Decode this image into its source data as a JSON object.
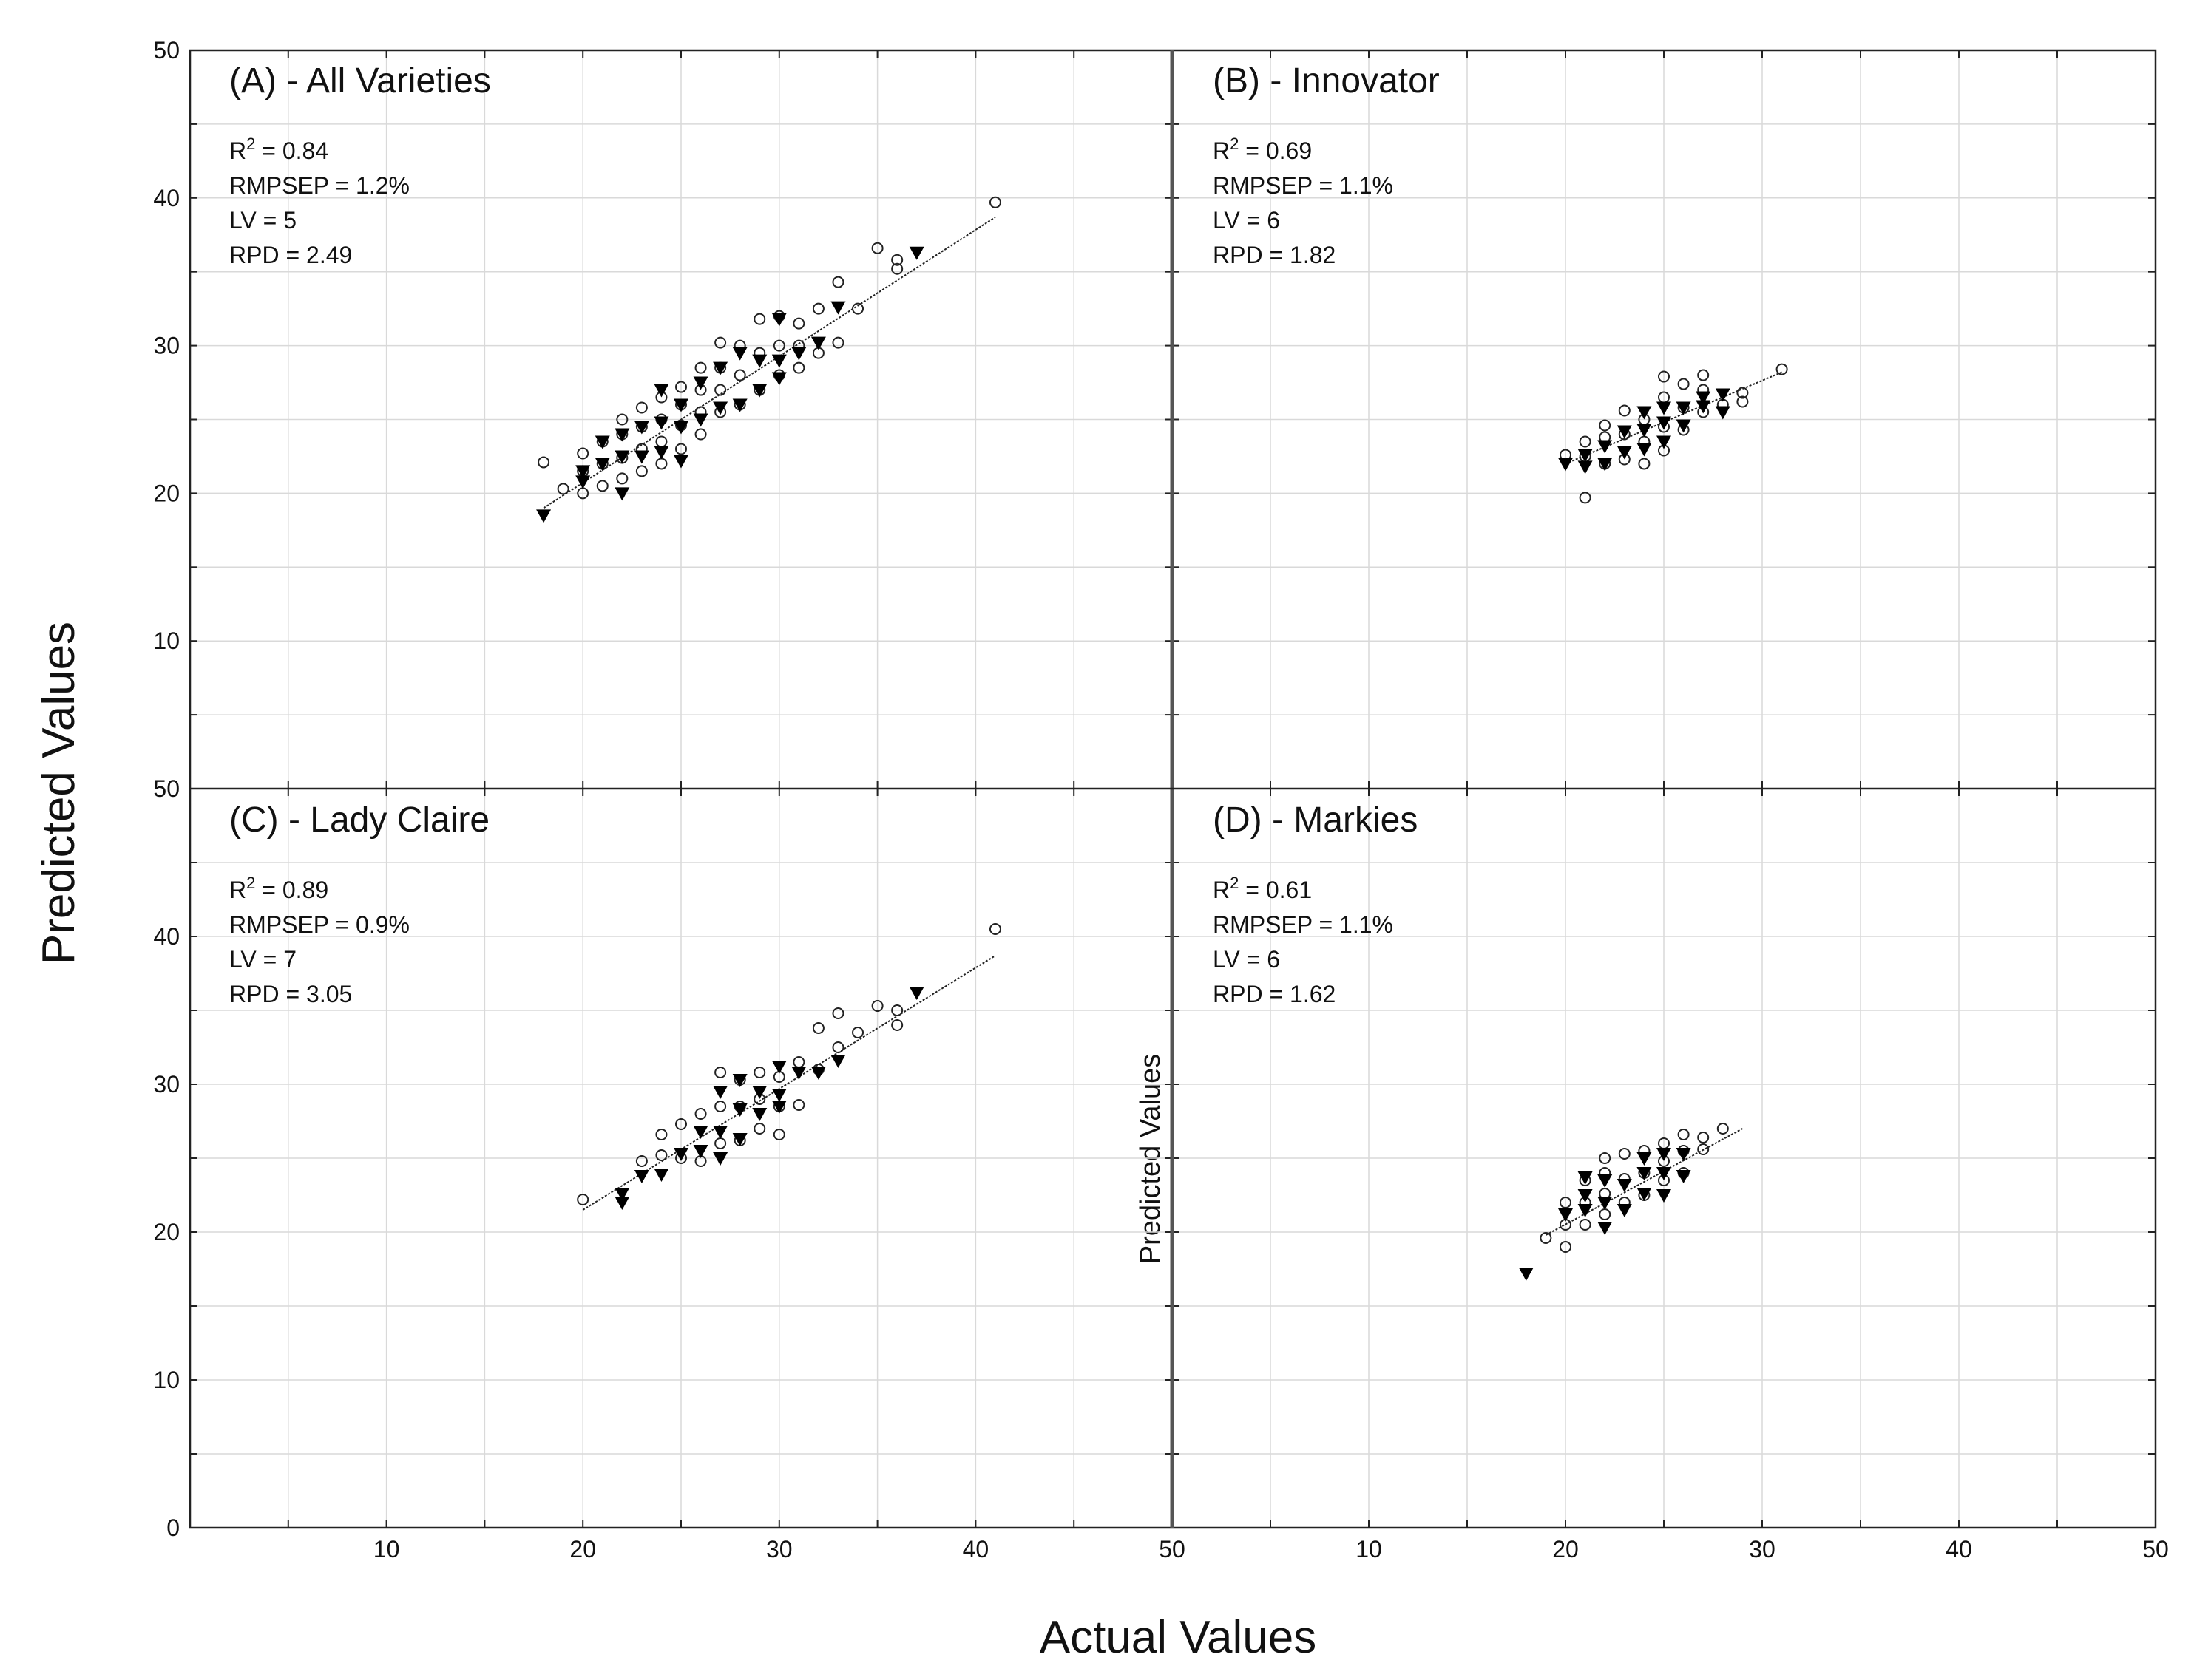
{
  "figure": {
    "xlabel": "Actual Values",
    "ylabel": "Predicted Values",
    "inset_ylabel": "Predicted Values",
    "bottom_x_ticks": [
      "10",
      "20",
      "30",
      "40",
      "50"
    ],
    "top_y_ticks": [
      "50",
      "40",
      "30",
      "20",
      "10"
    ],
    "bottom_y_ticks": [
      "50",
      "40",
      "30",
      "20",
      "10",
      "0"
    ],
    "shared_x_tick": "50"
  },
  "chart_data": [
    {
      "type": "scatter",
      "panel": "A",
      "title": "(A) - All Varieties",
      "stats": [
        {
          "label": "R",
          "sup": "2",
          "value": " = 0.84"
        },
        {
          "label": "RMPSEP",
          "sup": "",
          "value": " = 1.2%"
        },
        {
          "label": "LV",
          "sup": "",
          "value": " = 5"
        },
        {
          "label": "RPD",
          "sup": "",
          "value": " = 2.49"
        }
      ],
      "xlim": [
        0,
        50
      ],
      "ylim": [
        0,
        50
      ],
      "fit_line": {
        "x": [
          18,
          41
        ],
        "y": [
          19.0,
          38.7
        ]
      },
      "series": [
        {
          "name": "calibration",
          "marker": "circle",
          "x": [
            18,
            19,
            20,
            20,
            20,
            21,
            21,
            21,
            22,
            22,
            22,
            22,
            23,
            23,
            23,
            23,
            24,
            24,
            24,
            24,
            25,
            25,
            25,
            25,
            26,
            26,
            26,
            26,
            27,
            27,
            27,
            27,
            28,
            28,
            28,
            29,
            29,
            29,
            30,
            30,
            30,
            31,
            31,
            31,
            32,
            32,
            33,
            33,
            34,
            35,
            36,
            36,
            41
          ],
          "y": [
            22.1,
            20.3,
            20.0,
            21.5,
            22.7,
            20.5,
            22.0,
            23.5,
            21.0,
            22.4,
            24.0,
            25.0,
            21.5,
            23.0,
            24.5,
            25.8,
            22.0,
            23.5,
            25.0,
            26.5,
            23.0,
            24.6,
            26.0,
            27.2,
            24.0,
            25.5,
            27.0,
            28.5,
            25.5,
            27.0,
            28.5,
            30.2,
            26.0,
            28.0,
            30.0,
            27.0,
            29.5,
            31.8,
            28.0,
            30.0,
            32.0,
            28.5,
            30.0,
            31.5,
            29.5,
            32.5,
            30.2,
            34.3,
            32.5,
            36.6,
            35.2,
            35.8,
            39.7
          ]
        },
        {
          "name": "validation",
          "marker": "triangle-down",
          "x": [
            18,
            20,
            20,
            21,
            21,
            22,
            22,
            22,
            23,
            23,
            24,
            24,
            24,
            25,
            25,
            25,
            26,
            26,
            27,
            27,
            28,
            28,
            29,
            29,
            30,
            30,
            30,
            31,
            32,
            33,
            37
          ],
          "y": [
            18.5,
            20.8,
            21.5,
            22.0,
            23.5,
            20.0,
            22.5,
            24.0,
            22.5,
            24.5,
            22.8,
            24.8,
            27.0,
            22.2,
            24.5,
            26.0,
            25.0,
            27.5,
            25.8,
            28.5,
            26.0,
            29.5,
            27.0,
            29.0,
            27.8,
            29.0,
            31.8,
            29.5,
            30.2,
            32.6,
            36.3
          ]
        }
      ]
    },
    {
      "type": "scatter",
      "panel": "B",
      "title": "(B) - Innovator",
      "stats": [
        {
          "label": "R",
          "sup": "2",
          "value": " = 0.69"
        },
        {
          "label": "RMPSEP",
          "sup": "",
          "value": " = 1.1%"
        },
        {
          "label": "LV",
          "sup": "",
          "value": " = 6"
        },
        {
          "label": "RPD",
          "sup": "",
          "value": " = 1.82"
        }
      ],
      "xlim": [
        0,
        50
      ],
      "ylim": [
        0,
        50
      ],
      "fit_line": {
        "x": [
          20,
          31
        ],
        "y": [
          22.0,
          28.2
        ]
      },
      "series": [
        {
          "name": "calibration",
          "marker": "circle",
          "x": [
            20,
            21,
            21,
            21,
            22,
            22,
            22,
            23,
            23,
            23,
            24,
            24,
            24,
            25,
            25,
            25,
            25,
            26,
            26,
            26,
            27,
            27,
            27,
            28,
            29,
            29,
            31
          ],
          "y": [
            22.6,
            19.7,
            22.5,
            23.5,
            22.0,
            23.8,
            24.6,
            22.3,
            24.0,
            25.6,
            22.0,
            23.5,
            25.0,
            22.9,
            24.5,
            26.5,
            27.9,
            24.3,
            25.8,
            27.4,
            25.5,
            27.0,
            28.0,
            26.0,
            26.2,
            26.8,
            28.4
          ]
        },
        {
          "name": "validation",
          "marker": "triangle-down",
          "x": [
            20,
            21,
            21,
            22,
            22,
            23,
            23,
            24,
            24,
            24,
            25,
            25,
            25,
            26,
            26,
            27,
            27,
            28,
            28
          ],
          "y": [
            22.0,
            21.8,
            22.6,
            22.0,
            23.2,
            22.8,
            24.2,
            23.0,
            24.3,
            25.5,
            23.5,
            24.8,
            25.8,
            24.6,
            25.8,
            25.9,
            26.5,
            25.5,
            26.7
          ]
        }
      ]
    },
    {
      "type": "scatter",
      "panel": "C",
      "title": "(C) - Lady Claire",
      "stats": [
        {
          "label": "R",
          "sup": "2",
          "value": " = 0.89"
        },
        {
          "label": "RMPSEP",
          "sup": "",
          "value": " = 0.9%"
        },
        {
          "label": "LV",
          "sup": "",
          "value": " = 7"
        },
        {
          "label": "RPD",
          "sup": "",
          "value": " = 3.05"
        }
      ],
      "xlim": [
        0,
        50
      ],
      "ylim": [
        0,
        50
      ],
      "fit_line": {
        "x": [
          20,
          41
        ],
        "y": [
          21.5,
          38.7
        ]
      },
      "series": [
        {
          "name": "calibration",
          "marker": "circle",
          "x": [
            20,
            23,
            24,
            24,
            25,
            25,
            26,
            26,
            27,
            27,
            27,
            28,
            28,
            28,
            29,
            29,
            29,
            30,
            30,
            30,
            31,
            31,
            32,
            32,
            33,
            33,
            34,
            35,
            36,
            36,
            41
          ],
          "y": [
            22.2,
            24.8,
            25.2,
            26.6,
            25.0,
            27.3,
            24.8,
            28.0,
            26.0,
            28.5,
            30.8,
            26.2,
            28.5,
            30.3,
            27.0,
            29.0,
            30.8,
            26.6,
            28.5,
            30.5,
            28.6,
            31.5,
            31.0,
            33.8,
            32.5,
            34.8,
            33.5,
            35.3,
            34.0,
            35.0,
            40.5
          ]
        },
        {
          "name": "validation",
          "marker": "triangle-down",
          "x": [
            22,
            22,
            23,
            24,
            25,
            26,
            26,
            27,
            27,
            27,
            28,
            28,
            28,
            29,
            29,
            30,
            30,
            30,
            31,
            32,
            33,
            37
          ],
          "y": [
            22.0,
            22.6,
            23.8,
            23.9,
            25.3,
            25.5,
            26.8,
            25.0,
            26.8,
            29.5,
            26.3,
            28.3,
            30.3,
            28.0,
            29.5,
            28.5,
            29.3,
            31.2,
            30.8,
            30.8,
            31.6,
            36.2
          ]
        }
      ]
    },
    {
      "type": "scatter",
      "panel": "D",
      "title": "(D) - Markies",
      "stats": [
        {
          "label": "R",
          "sup": "2",
          "value": " = 0.61"
        },
        {
          "label": "RMPSEP",
          "sup": "",
          "value": " = 1.1%"
        },
        {
          "label": "LV",
          "sup": "",
          "value": " = 6"
        },
        {
          "label": "RPD",
          "sup": "",
          "value": " = 1.62"
        }
      ],
      "xlim": [
        0,
        50
      ],
      "ylim": [
        0,
        50
      ],
      "fit_line": {
        "x": [
          19,
          29
        ],
        "y": [
          19.8,
          27.0
        ]
      },
      "series": [
        {
          "name": "calibration",
          "marker": "circle",
          "x": [
            19,
            20,
            20,
            20,
            21,
            21,
            21,
            22,
            22,
            22,
            22,
            23,
            23,
            23,
            24,
            24,
            24,
            25,
            25,
            25,
            26,
            26,
            26,
            27,
            27,
            28
          ],
          "y": [
            19.6,
            19.0,
            20.5,
            22.0,
            20.5,
            22.0,
            23.5,
            21.2,
            22.6,
            24.0,
            25.0,
            22.0,
            23.6,
            25.3,
            22.5,
            24.0,
            25.5,
            23.5,
            24.8,
            26.0,
            24.0,
            25.5,
            26.6,
            25.6,
            26.4,
            27.0
          ]
        },
        {
          "name": "validation",
          "marker": "triangle-down",
          "x": [
            18,
            20,
            21,
            21,
            21,
            22,
            22,
            22,
            23,
            23,
            24,
            24,
            24,
            25,
            25,
            25,
            26,
            26
          ],
          "y": [
            17.2,
            21.2,
            21.5,
            22.5,
            23.7,
            20.3,
            22.0,
            23.5,
            21.5,
            23.2,
            22.6,
            24.0,
            25.0,
            22.5,
            24.0,
            25.3,
            23.8,
            25.3
          ]
        }
      ]
    }
  ]
}
